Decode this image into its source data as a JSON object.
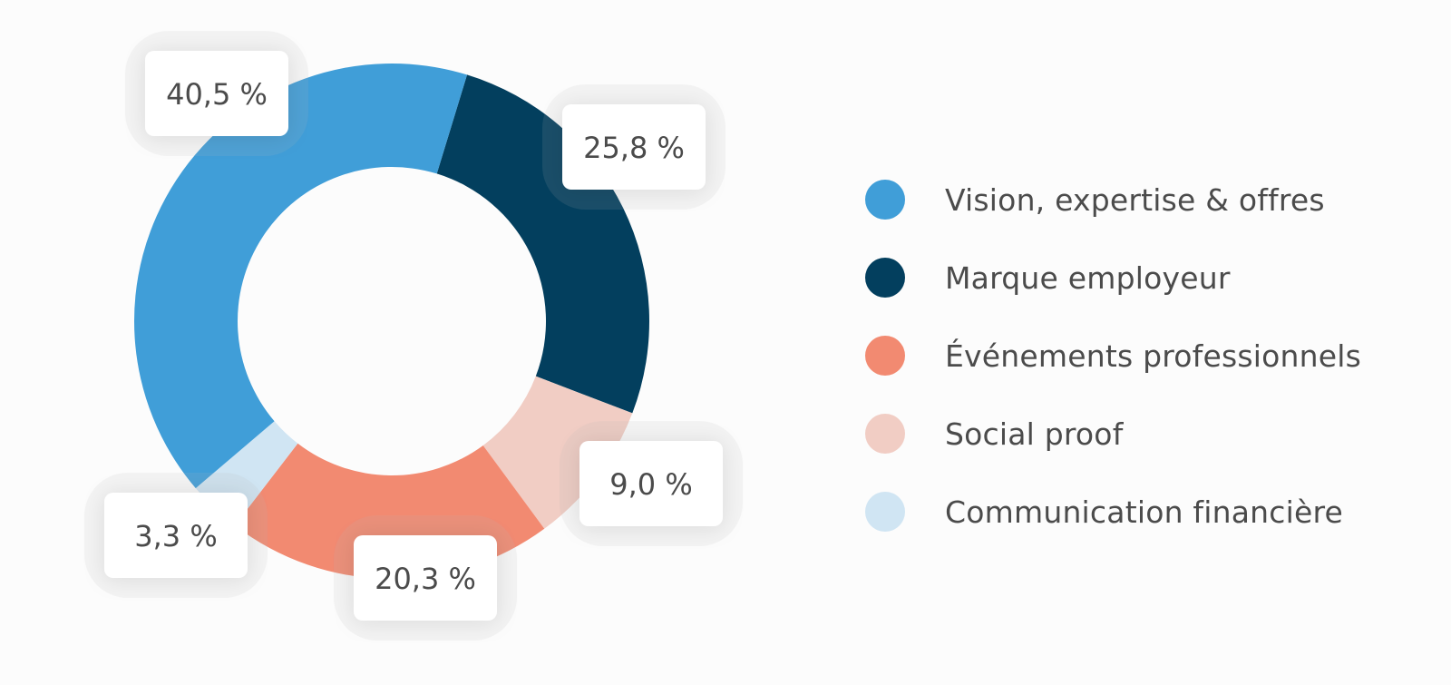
{
  "chart_data": {
    "type": "pie",
    "variant": "donut",
    "title": "",
    "categories": [
      "Vision, expertise & offres",
      "Marque employeur",
      "Événements professionnels",
      "Social proof",
      "Communication financière"
    ],
    "values": [
      40.5,
      25.8,
      20.3,
      9.0,
      3.3
    ],
    "value_labels": [
      "40,5 %",
      "25,8 %",
      "20,3 %",
      "9,0 %",
      "3,3 %"
    ],
    "colors": [
      "#409ed8",
      "#033f5e",
      "#f28a71",
      "#f1cdc4",
      "#d0e5f3"
    ],
    "slice_order_clockwise_from_top": [
      "Marque employeur",
      "Social proof",
      "Événements professionnels",
      "Communication financière",
      "Vision, expertise & offres"
    ],
    "legend_position": "right"
  }
}
